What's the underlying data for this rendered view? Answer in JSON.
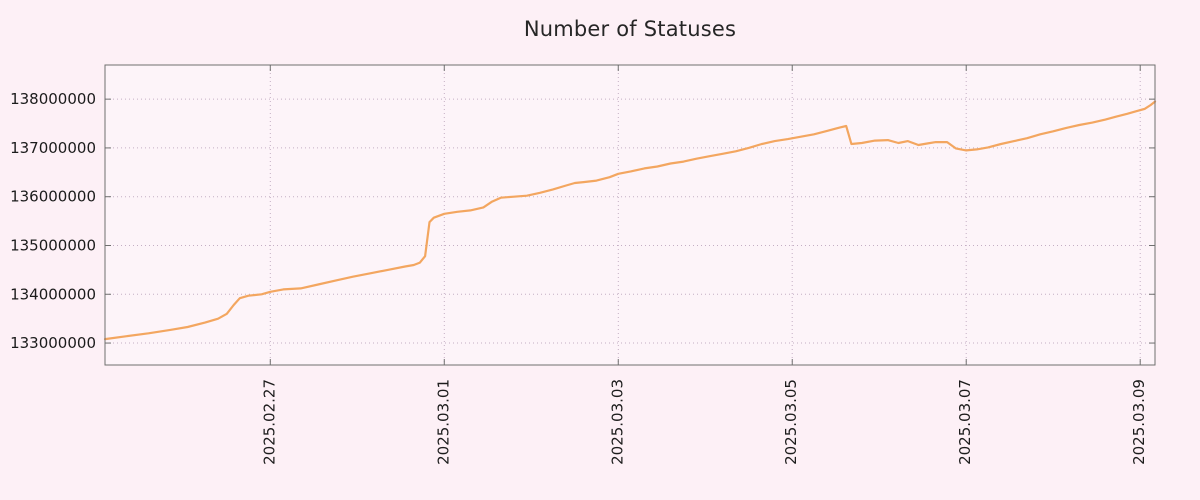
{
  "colors": {
    "background": "#fdf0f6",
    "plot_background": "#fdf4f9",
    "line": "#f3a660",
    "grid": "#c4aec4",
    "border": "#6f6f6f",
    "text": "#1c1c1c"
  },
  "chart_data": {
    "type": "line",
    "title": "Number of Statuses",
    "xlabel": "",
    "ylabel": "",
    "legend": false,
    "grid": true,
    "x_axis": {
      "unit": "date",
      "epoch_day0": "2025.02.25",
      "range_days": [
        0.1,
        12.17
      ],
      "tick_positions_days": [
        2,
        4,
        6,
        8,
        10,
        12
      ],
      "tick_labels": [
        "2025.02.27",
        "2025.03.01",
        "2025.03.03",
        "2025.03.05",
        "2025.03.07",
        "2025.03.09"
      ]
    },
    "y_axis": {
      "range": [
        132550000,
        138700000
      ],
      "tick_values": [
        133000000,
        134000000,
        135000000,
        136000000,
        137000000,
        138000000
      ],
      "tick_labels": [
        "133000000",
        "134000000",
        "135000000",
        "136000000",
        "137000000",
        "138000000"
      ]
    },
    "series": [
      {
        "name": "statuses",
        "points": [
          [
            0.1,
            133080000
          ],
          [
            0.35,
            133140000
          ],
          [
            0.6,
            133200000
          ],
          [
            0.85,
            133270000
          ],
          [
            1.05,
            133330000
          ],
          [
            1.25,
            133420000
          ],
          [
            1.4,
            133500000
          ],
          [
            1.5,
            133600000
          ],
          [
            1.58,
            133780000
          ],
          [
            1.65,
            133920000
          ],
          [
            1.75,
            133970000
          ],
          [
            1.9,
            134000000
          ],
          [
            2.0,
            134050000
          ],
          [
            2.15,
            134100000
          ],
          [
            2.35,
            134120000
          ],
          [
            2.55,
            134200000
          ],
          [
            2.75,
            134280000
          ],
          [
            2.95,
            134360000
          ],
          [
            3.15,
            134430000
          ],
          [
            3.35,
            134500000
          ],
          [
            3.55,
            134570000
          ],
          [
            3.65,
            134600000
          ],
          [
            3.72,
            134650000
          ],
          [
            3.78,
            134780000
          ],
          [
            3.83,
            135480000
          ],
          [
            3.88,
            135570000
          ],
          [
            4.0,
            135650000
          ],
          [
            4.15,
            135690000
          ],
          [
            4.3,
            135720000
          ],
          [
            4.45,
            135780000
          ],
          [
            4.55,
            135900000
          ],
          [
            4.65,
            135980000
          ],
          [
            4.8,
            136000000
          ],
          [
            4.95,
            136020000
          ],
          [
            5.1,
            136080000
          ],
          [
            5.25,
            136150000
          ],
          [
            5.4,
            136230000
          ],
          [
            5.5,
            136280000
          ],
          [
            5.6,
            136300000
          ],
          [
            5.75,
            136330000
          ],
          [
            5.9,
            136400000
          ],
          [
            6.0,
            136470000
          ],
          [
            6.15,
            136520000
          ],
          [
            6.3,
            136580000
          ],
          [
            6.45,
            136620000
          ],
          [
            6.6,
            136680000
          ],
          [
            6.75,
            136720000
          ],
          [
            6.9,
            136780000
          ],
          [
            7.05,
            136830000
          ],
          [
            7.2,
            136880000
          ],
          [
            7.35,
            136930000
          ],
          [
            7.5,
            137000000
          ],
          [
            7.65,
            137080000
          ],
          [
            7.8,
            137140000
          ],
          [
            7.95,
            137180000
          ],
          [
            8.1,
            137230000
          ],
          [
            8.25,
            137280000
          ],
          [
            8.4,
            137350000
          ],
          [
            8.55,
            137420000
          ],
          [
            8.62,
            137450000
          ],
          [
            8.68,
            137080000
          ],
          [
            8.8,
            137100000
          ],
          [
            8.95,
            137150000
          ],
          [
            9.1,
            137160000
          ],
          [
            9.22,
            137100000
          ],
          [
            9.33,
            137140000
          ],
          [
            9.45,
            137060000
          ],
          [
            9.55,
            137090000
          ],
          [
            9.65,
            137120000
          ],
          [
            9.78,
            137120000
          ],
          [
            9.88,
            136990000
          ],
          [
            10.0,
            136950000
          ],
          [
            10.12,
            136970000
          ],
          [
            10.25,
            137010000
          ],
          [
            10.4,
            137080000
          ],
          [
            10.55,
            137140000
          ],
          [
            10.7,
            137200000
          ],
          [
            10.85,
            137280000
          ],
          [
            11.0,
            137340000
          ],
          [
            11.15,
            137410000
          ],
          [
            11.3,
            137470000
          ],
          [
            11.45,
            137520000
          ],
          [
            11.6,
            137580000
          ],
          [
            11.72,
            137640000
          ],
          [
            11.85,
            137700000
          ],
          [
            11.95,
            137750000
          ],
          [
            12.05,
            137800000
          ],
          [
            12.12,
            137880000
          ],
          [
            12.17,
            137950000
          ]
        ]
      }
    ]
  }
}
